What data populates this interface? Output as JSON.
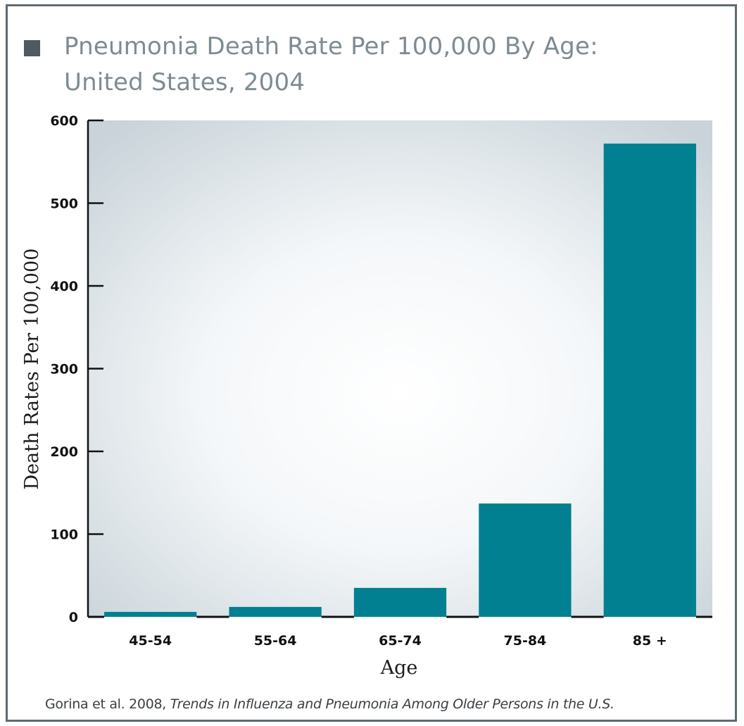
{
  "title": {
    "line1": "Pneumonia Death Rate Per 100,000 By Age:",
    "line2": "United States, 2004"
  },
  "chart_data": {
    "type": "bar",
    "categories": [
      "45-54",
      "55-64",
      "65-74",
      "75-84",
      "85 +"
    ],
    "values": [
      6,
      12,
      35,
      137,
      572
    ],
    "xlabel": "Age",
    "ylabel": "Death Rates Per 100,000",
    "ylim": [
      0,
      600
    ],
    "yticks": [
      0,
      100,
      200,
      300,
      400,
      500,
      600
    ],
    "bar_color": "#008090",
    "grid": false
  },
  "caption": {
    "plain": "Gorina et al. 2008, ",
    "italic": "Trends in Influenza and Pneumonia Among Older Persons in the U.S."
  },
  "colors": {
    "frame": "#5d6b74",
    "title": "#7e8b93",
    "marker": "#4e5a62"
  }
}
